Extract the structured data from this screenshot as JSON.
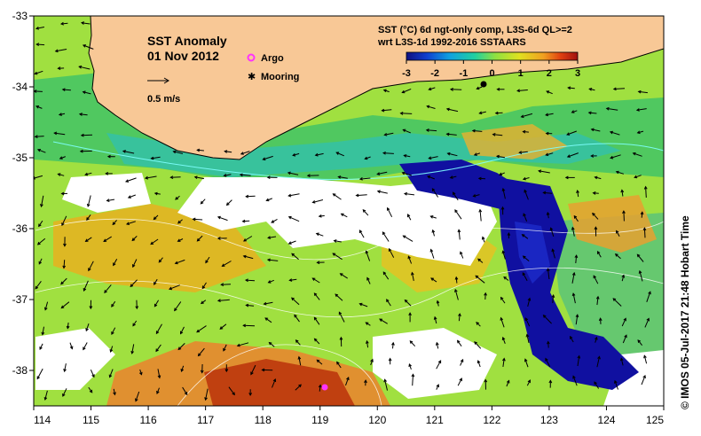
{
  "map": {
    "title": "SST Anomaly",
    "date": "01 Nov 2012",
    "velocity_label": "0.5 m/s",
    "legend": {
      "argo_label": "Argo",
      "mooring_label": "Mooring",
      "argo_color": "#ff33ff",
      "mooring_color": "#000000"
    },
    "colorbar": {
      "title_line1": "SST (°C) 6d ngt-only comp, L3S-6d QL>=2",
      "title_line2": "wrt L3S-1d 1992-2016 SSTAARS",
      "min": -3,
      "max": 3,
      "ticks": [
        "-3",
        "-2",
        "-1",
        "0",
        "1",
        "2",
        "3"
      ],
      "colors": [
        "#101080",
        "#1040d0",
        "#10a0e0",
        "#20d0a0",
        "#90e040",
        "#e0e020",
        "#f0a020",
        "#e04010",
        "#a01010"
      ]
    },
    "credit": "© IMOS 05-Jul-2017 21:48 Hobart Time",
    "lon_ticks": [
      "114",
      "115",
      "116",
      "117",
      "118",
      "119",
      "120",
      "121",
      "122",
      "123",
      "124",
      "125"
    ],
    "lat_ticks": [
      "-33",
      "-34",
      "-35",
      "-36",
      "-37",
      "-38"
    ],
    "lon_range": [
      114,
      125
    ],
    "lat_range": [
      -38.5,
      -33
    ],
    "colors": {
      "land": "#f8c896",
      "no_data": "#ffffff",
      "cold_anomaly": "#1010a0",
      "warm_anomaly": "#e08020",
      "neutral": "#a0e040"
    }
  }
}
